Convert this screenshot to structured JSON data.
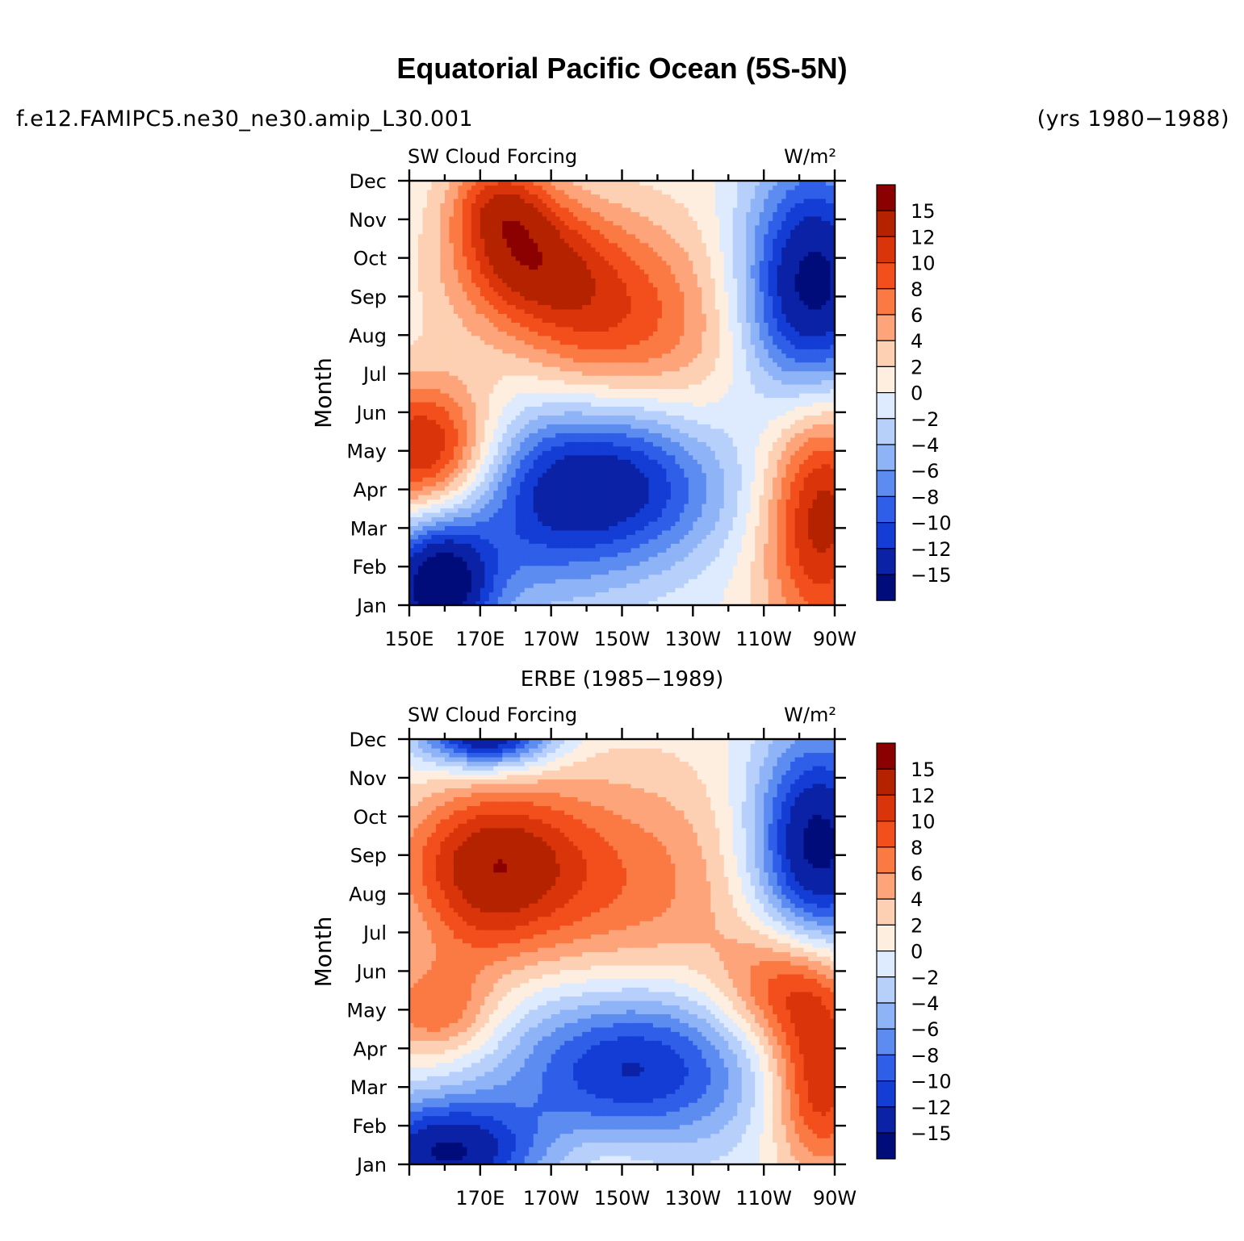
{
  "header": {
    "title": "Equatorial Pacific Ocean (5S-5N)",
    "case_name": "f.e12.FAMIPC5.ne30_ne30.amip_L30.001",
    "years": "(yrs 1980−1988)"
  },
  "colorbar": {
    "labels": [
      "15",
      "12",
      "10",
      "8",
      "6",
      "4",
      "2",
      "0",
      "−2",
      "−4",
      "−6",
      "−8",
      "−10",
      "−12",
      "−15"
    ],
    "colors_top_to_bottom": [
      "#8b0000",
      "#b42200",
      "#d9340a",
      "#f24f1c",
      "#fb7a44",
      "#fda47b",
      "#fdd0b3",
      "#fdeedf",
      "#deeafd",
      "#b7d0fb",
      "#8eb3f7",
      "#5d8cf0",
      "#2f5fe8",
      "#133dd4",
      "#0b22a6",
      "#000c7a"
    ]
  },
  "chart_data": [
    {
      "type": "heatmap",
      "panel_title": "",
      "left_label": "SW Cloud Forcing",
      "right_label": "W/m²",
      "ylabel": "Month",
      "y_ticks": [
        "Jan",
        "Feb",
        "Mar",
        "Apr",
        "May",
        "Jun",
        "Jul",
        "Aug",
        "Sep",
        "Oct",
        "Nov",
        "Dec"
      ],
      "x_tick_labels": [
        "150E",
        "170E",
        "170W",
        "150W",
        "130W",
        "110W",
        "90W"
      ],
      "x_range": [
        "150E",
        "90W"
      ],
      "contour_levels": [
        -15,
        -12,
        -10,
        -8,
        -6,
        -4,
        -2,
        0,
        2,
        4,
        6,
        8,
        10,
        12,
        15
      ],
      "anomalies": [
        {
          "lon": 155,
          "month": 5,
          "value": 14,
          "rx": 14,
          "ry": 1.3
        },
        {
          "lon": 158,
          "month": 1.5,
          "value": -18,
          "rx": 11,
          "ry": 1.3
        },
        {
          "lon": 182,
          "month": 10,
          "value": 10,
          "rx": 14,
          "ry": 1.2
        },
        {
          "lon": 175,
          "month": 11.5,
          "value": 8,
          "rx": 10,
          "ry": 0.9
        },
        {
          "lon": 205,
          "month": 8.5,
          "value": 10,
          "rx": 19,
          "ry": 1.9
        },
        {
          "lon": 208,
          "month": 4.2,
          "value": -14,
          "rx": 26,
          "ry": 1.6
        },
        {
          "lon": 185,
          "month": 3.2,
          "value": -4,
          "rx": 16,
          "ry": 2.0
        },
        {
          "lon": 264,
          "month": 9,
          "value": -18,
          "rx": 14,
          "ry": 2.4
        },
        {
          "lon": 266,
          "month": 3.8,
          "value": 15,
          "rx": 12,
          "ry": 2.6
        },
        {
          "lon": 162,
          "month": 9,
          "value": 1,
          "rx": 12,
          "ry": 1.4
        },
        {
          "lon": 235,
          "month": 6.5,
          "value": 3,
          "rx": 13,
          "ry": 3.0
        }
      ]
    },
    {
      "type": "heatmap",
      "panel_title": "ERBE (1985−1989)",
      "left_label": "SW Cloud Forcing",
      "right_label": "W/m²",
      "ylabel": "Month",
      "y_ticks": [
        "Jan",
        "Feb",
        "Mar",
        "Apr",
        "May",
        "Jun",
        "Jul",
        "Aug",
        "Sep",
        "Oct",
        "Nov",
        "Dec"
      ],
      "x_tick_labels": [
        "",
        "170E",
        "170W",
        "150W",
        "130W",
        "110W",
        "90W"
      ],
      "x_range": [
        "150E",
        "90W"
      ],
      "contour_levels": [
        -15,
        -12,
        -10,
        -8,
        -6,
        -4,
        -2,
        0,
        2,
        4,
        6,
        8,
        10,
        12,
        15
      ],
      "anomalies": [
        {
          "lon": 172,
          "month": 12.1,
          "value": -16,
          "rx": 13,
          "ry": 0.6
        },
        {
          "lon": 172,
          "month": 8.8,
          "value": 12,
          "rx": 18,
          "ry": 1.4
        },
        {
          "lon": 210,
          "month": 8.2,
          "value": 7,
          "rx": 28,
          "ry": 2.3
        },
        {
          "lon": 158,
          "month": 5,
          "value": 8,
          "rx": 12,
          "ry": 0.9
        },
        {
          "lon": 213,
          "month": 3.6,
          "value": -13,
          "rx": 26,
          "ry": 1.5
        },
        {
          "lon": 160,
          "month": 1.3,
          "value": -15,
          "rx": 18,
          "ry": 1.0
        },
        {
          "lon": 265,
          "month": 9.2,
          "value": -17,
          "rx": 13,
          "ry": 2.1
        },
        {
          "lon": 258,
          "month": 5.6,
          "value": 11,
          "rx": 14,
          "ry": 1.2
        },
        {
          "lon": 266,
          "month": 3,
          "value": 12,
          "rx": 10,
          "ry": 1.6
        },
        {
          "lon": 170,
          "month": 6.9,
          "value": 2,
          "rx": 12,
          "ry": 0.8
        },
        {
          "lon": 205,
          "month": 1.2,
          "value": 2,
          "rx": 12,
          "ry": 0.7
        }
      ]
    }
  ]
}
